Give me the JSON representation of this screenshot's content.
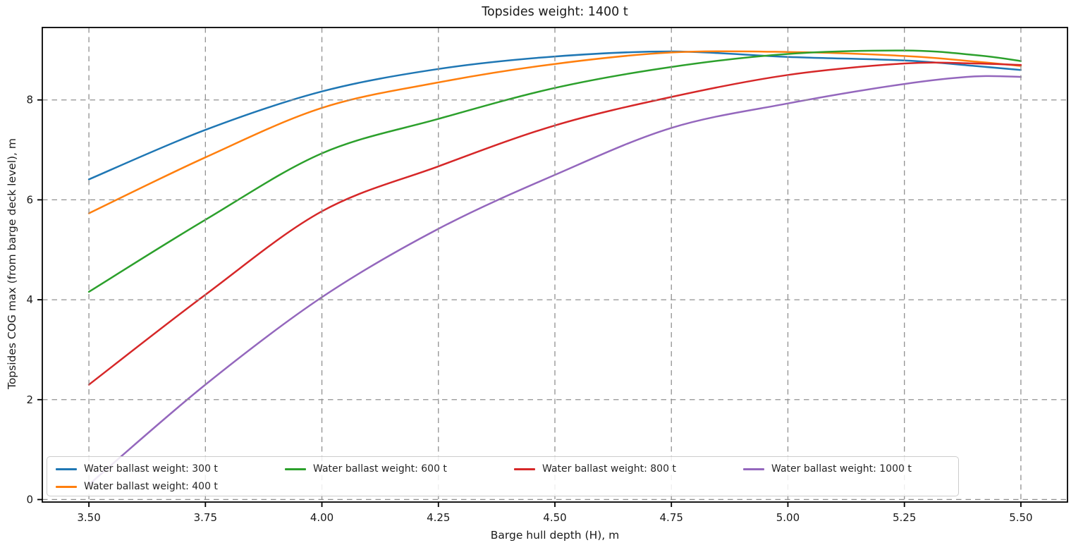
{
  "figure_title": "Topsides weight: 1400 t",
  "chart_data": {
    "type": "line",
    "title": "Topsides weight: 1400 t",
    "xlabel": "Barge hull depth (H), m",
    "ylabel": "Topsides COG max (from barge deck level), m",
    "xlim": [
      3.4,
      5.6
    ],
    "ylim": [
      -0.05,
      9.45
    ],
    "xticks": [
      "3.50",
      "3.75",
      "4.00",
      "4.25",
      "4.50",
      "4.75",
      "5.00",
      "5.25",
      "5.50"
    ],
    "xtick_values": [
      3.5,
      3.75,
      4.0,
      4.25,
      4.5,
      4.75,
      5.0,
      5.25,
      5.5
    ],
    "yticks": [
      "0",
      "2",
      "4",
      "6",
      "8"
    ],
    "ytick_values": [
      0,
      2,
      4,
      6,
      8
    ],
    "grid": true,
    "grid_style": "dashed",
    "grid_color": "#909090",
    "legend_position": "lower-left, 4 columns, inside axes",
    "x": [
      3.5,
      3.75,
      4.0,
      4.25,
      4.5,
      4.75,
      5.0,
      5.25,
      5.4,
      5.5
    ],
    "series": [
      {
        "name": "Water ballast weight: 300 t",
        "color": "#1f77b4",
        "values": [
          6.41,
          7.4,
          8.17,
          8.62,
          8.87,
          8.97,
          8.86,
          8.79,
          8.68,
          8.6
        ]
      },
      {
        "name": "Water ballast weight: 400 t",
        "color": "#ff7f0e",
        "values": [
          5.73,
          6.85,
          7.84,
          8.35,
          8.72,
          8.95,
          8.96,
          8.88,
          8.77,
          8.68
        ]
      },
      {
        "name": "Water ballast weight: 600 t",
        "color": "#2ca02c",
        "values": [
          4.16,
          5.6,
          6.93,
          7.62,
          8.24,
          8.66,
          8.92,
          8.99,
          8.9,
          8.78
        ]
      },
      {
        "name": "Water ballast weight: 800 t",
        "color": "#d62728",
        "values": [
          2.3,
          4.1,
          5.77,
          6.67,
          7.49,
          8.06,
          8.5,
          8.73,
          8.73,
          8.7
        ]
      },
      {
        "name": "Water ballast weight: 1000 t",
        "color": "#9467bd",
        "values": [
          0.3,
          2.3,
          4.05,
          5.42,
          6.5,
          7.44,
          7.93,
          8.32,
          8.47,
          8.46
        ]
      }
    ]
  }
}
